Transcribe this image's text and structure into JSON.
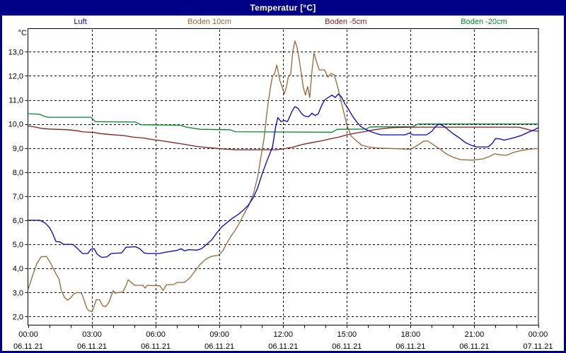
{
  "window": {
    "title": "Temperatur [°C]"
  },
  "colors": {
    "frame": "#000087",
    "titlebar_bg": "#000087",
    "titlebar_text": "#ffffff",
    "axis_text": "#000000",
    "grid": "#000000",
    "plot_border": "#000000",
    "background": "#ffffff"
  },
  "legend": [
    {
      "label": "Luft",
      "color": "#0000cc"
    },
    {
      "label": "Boden 10cm",
      "color": "#996633"
    },
    {
      "label": "Boden -5cm",
      "color": "#8b1a1a"
    },
    {
      "label": "Boden -20cm",
      "color": "#008a28"
    }
  ],
  "chart_data": {
    "type": "line",
    "title": "Temperatur [°C]",
    "ylabel": "°C",
    "unit_label": "°C",
    "grid": true,
    "legend_position": "top",
    "x_axis": {
      "unit": "hours",
      "min": 0,
      "max": 24,
      "minor_tick_every_hours": 1,
      "major_ticks": [
        {
          "hour": 0,
          "time": "00:00",
          "date": "06.11.21"
        },
        {
          "hour": 3,
          "time": "03:00",
          "date": "06.11.21"
        },
        {
          "hour": 6,
          "time": "06:00",
          "date": "06.11.21"
        },
        {
          "hour": 9,
          "time": "09:00",
          "date": "06.11.21"
        },
        {
          "hour": 12,
          "time": "12:00",
          "date": "06.11.21"
        },
        {
          "hour": 15,
          "time": "15:00",
          "date": "06.11.21"
        },
        {
          "hour": 18,
          "time": "18:00",
          "date": "06.11.21"
        },
        {
          "hour": 21,
          "time": "21:00",
          "date": "06.11.21"
        },
        {
          "hour": 24,
          "time": "00:00",
          "date": "07.11.21"
        }
      ]
    },
    "y_axis": {
      "min_visible": 1.66,
      "max_visible": 13.95,
      "tick_step": 1.0,
      "tick_values": [
        2,
        3,
        4,
        5,
        6,
        7,
        8,
        9,
        10,
        11,
        12,
        13
      ],
      "tick_labels": [
        "2,0",
        "3,0",
        "4,0",
        "5,0",
        "6,0",
        "7,0",
        "8,0",
        "9,0",
        "10,0",
        "11,0",
        "12,0",
        "13,0"
      ]
    },
    "series": [
      {
        "name": "Boden -20cm",
        "color": "#008a28",
        "points": [
          [
            0,
            10.43
          ],
          [
            0.55,
            10.4
          ],
          [
            0.75,
            10.32
          ],
          [
            0.95,
            10.28
          ],
          [
            2.95,
            10.28
          ],
          [
            3.15,
            10.1
          ],
          [
            5.05,
            10.08
          ],
          [
            5.3,
            9.97
          ],
          [
            7.15,
            9.95
          ],
          [
            7.45,
            9.87
          ],
          [
            8.1,
            9.78
          ],
          [
            9.5,
            9.76
          ],
          [
            9.75,
            9.68
          ],
          [
            14.3,
            9.66
          ],
          [
            14.55,
            9.78
          ],
          [
            15.9,
            9.79
          ],
          [
            16.1,
            9.88
          ],
          [
            18.1,
            9.89
          ],
          [
            18.35,
            10.0
          ],
          [
            24,
            10.0
          ]
        ]
      },
      {
        "name": "Boden -5cm",
        "color": "#8b1a1a",
        "points": [
          [
            0,
            9.92
          ],
          [
            0.35,
            9.87
          ],
          [
            0.6,
            9.82
          ],
          [
            1.0,
            9.79
          ],
          [
            1.9,
            9.76
          ],
          [
            2.3,
            9.72
          ],
          [
            2.6,
            9.67
          ],
          [
            3.1,
            9.65
          ],
          [
            3.4,
            9.6
          ],
          [
            3.9,
            9.56
          ],
          [
            4.5,
            9.52
          ],
          [
            4.9,
            9.46
          ],
          [
            5.4,
            9.42
          ],
          [
            5.8,
            9.36
          ],
          [
            6.3,
            9.3
          ],
          [
            6.9,
            9.22
          ],
          [
            7.4,
            9.15
          ],
          [
            7.9,
            9.07
          ],
          [
            8.5,
            9.02
          ],
          [
            9.1,
            8.97
          ],
          [
            9.8,
            8.93
          ],
          [
            11.7,
            8.93
          ],
          [
            12.1,
            8.98
          ],
          [
            12.5,
            9.05
          ],
          [
            12.9,
            9.15
          ],
          [
            13.3,
            9.22
          ],
          [
            13.8,
            9.3
          ],
          [
            14.2,
            9.38
          ],
          [
            14.6,
            9.45
          ],
          [
            15.0,
            9.55
          ],
          [
            15.4,
            9.62
          ],
          [
            15.8,
            9.68
          ],
          [
            16.2,
            9.75
          ],
          [
            16.6,
            9.8
          ],
          [
            17.1,
            9.85
          ],
          [
            18.0,
            9.87
          ],
          [
            23.1,
            9.87
          ],
          [
            23.4,
            9.8
          ],
          [
            23.7,
            9.73
          ],
          [
            24,
            9.7
          ]
        ]
      },
      {
        "name": "Boden 10cm",
        "color": "#996633",
        "points": [
          [
            0,
            3.15
          ],
          [
            0.2,
            3.7
          ],
          [
            0.4,
            4.2
          ],
          [
            0.6,
            4.48
          ],
          [
            0.85,
            4.5
          ],
          [
            1.0,
            4.3
          ],
          [
            1.15,
            4.05
          ],
          [
            1.3,
            3.78
          ],
          [
            1.45,
            3.55
          ],
          [
            1.55,
            3.1
          ],
          [
            1.7,
            2.8
          ],
          [
            1.85,
            2.68
          ],
          [
            2.0,
            2.78
          ],
          [
            2.15,
            2.95
          ],
          [
            2.3,
            3.0
          ],
          [
            2.5,
            2.98
          ],
          [
            2.6,
            2.75
          ],
          [
            2.75,
            2.35
          ],
          [
            2.85,
            2.25
          ],
          [
            3.0,
            2.2
          ],
          [
            3.1,
            2.45
          ],
          [
            3.2,
            2.7
          ],
          [
            3.35,
            2.7
          ],
          [
            3.5,
            2.45
          ],
          [
            3.65,
            2.42
          ],
          [
            3.8,
            2.6
          ],
          [
            3.9,
            2.85
          ],
          [
            4.0,
            3.08
          ],
          [
            4.1,
            2.97
          ],
          [
            4.25,
            3.0
          ],
          [
            4.45,
            3.02
          ],
          [
            4.6,
            3.28
          ],
          [
            4.7,
            3.53
          ],
          [
            4.85,
            3.42
          ],
          [
            5.0,
            3.3
          ],
          [
            5.4,
            3.3
          ],
          [
            5.5,
            3.18
          ],
          [
            5.6,
            3.3
          ],
          [
            6.2,
            3.28
          ],
          [
            6.35,
            3.08
          ],
          [
            6.5,
            3.32
          ],
          [
            6.85,
            3.33
          ],
          [
            7.0,
            3.42
          ],
          [
            7.35,
            3.42
          ],
          [
            7.6,
            3.6
          ],
          [
            7.85,
            3.9
          ],
          [
            8.1,
            4.18
          ],
          [
            8.35,
            4.38
          ],
          [
            8.6,
            4.5
          ],
          [
            8.95,
            4.55
          ],
          [
            9.15,
            4.72
          ],
          [
            9.35,
            5.05
          ],
          [
            9.55,
            5.35
          ],
          [
            9.75,
            5.6
          ],
          [
            9.95,
            5.9
          ],
          [
            10.15,
            6.25
          ],
          [
            10.4,
            6.65
          ],
          [
            10.6,
            7.1
          ],
          [
            10.8,
            7.8
          ],
          [
            10.95,
            8.6
          ],
          [
            11.1,
            9.4
          ],
          [
            11.25,
            10.6
          ],
          [
            11.4,
            11.5
          ],
          [
            11.5,
            12.0
          ],
          [
            11.6,
            12.1
          ],
          [
            11.7,
            12.45
          ],
          [
            11.85,
            11.8
          ],
          [
            11.95,
            11.55
          ],
          [
            12.05,
            11.25
          ],
          [
            12.15,
            11.55
          ],
          [
            12.25,
            12.0
          ],
          [
            12.35,
            12.05
          ],
          [
            12.45,
            13.0
          ],
          [
            12.55,
            13.45
          ],
          [
            12.65,
            13.2
          ],
          [
            12.75,
            12.7
          ],
          [
            12.85,
            12.1
          ],
          [
            12.95,
            11.5
          ],
          [
            13.05,
            11.2
          ],
          [
            13.15,
            11.55
          ],
          [
            13.25,
            11.1
          ],
          [
            13.35,
            12.15
          ],
          [
            13.45,
            12.95
          ],
          [
            13.6,
            12.5
          ],
          [
            13.7,
            12.25
          ],
          [
            13.95,
            12.25
          ],
          [
            14.1,
            11.95
          ],
          [
            14.25,
            12.1
          ],
          [
            14.4,
            12.05
          ],
          [
            14.55,
            11.6
          ],
          [
            14.7,
            11.05
          ],
          [
            14.85,
            10.5
          ],
          [
            15.0,
            9.95
          ],
          [
            15.2,
            9.5
          ],
          [
            15.45,
            9.3
          ],
          [
            15.7,
            9.12
          ],
          [
            16.0,
            9.05
          ],
          [
            16.5,
            9.0
          ],
          [
            17.5,
            8.97
          ],
          [
            18.0,
            8.95
          ],
          [
            18.3,
            9.1
          ],
          [
            18.6,
            9.28
          ],
          [
            18.8,
            9.3
          ],
          [
            19.1,
            9.12
          ],
          [
            19.4,
            8.95
          ],
          [
            19.7,
            8.75
          ],
          [
            20.0,
            8.62
          ],
          [
            20.35,
            8.52
          ],
          [
            20.9,
            8.5
          ],
          [
            21.4,
            8.55
          ],
          [
            21.7,
            8.65
          ],
          [
            21.95,
            8.76
          ],
          [
            22.2,
            8.72
          ],
          [
            22.5,
            8.7
          ],
          [
            22.85,
            8.82
          ],
          [
            23.2,
            8.9
          ],
          [
            23.55,
            8.95
          ],
          [
            24,
            8.98
          ]
        ]
      },
      {
        "name": "Luft",
        "color": "#0000cc",
        "points": [
          [
            0,
            6.0
          ],
          [
            0.55,
            6.0
          ],
          [
            0.8,
            5.88
          ],
          [
            1.0,
            5.7
          ],
          [
            1.15,
            5.45
          ],
          [
            1.3,
            5.12
          ],
          [
            1.5,
            5.1
          ],
          [
            1.65,
            5.0
          ],
          [
            2.1,
            5.0
          ],
          [
            2.35,
            4.8
          ],
          [
            2.55,
            4.62
          ],
          [
            2.8,
            4.62
          ],
          [
            2.95,
            4.8
          ],
          [
            3.1,
            4.82
          ],
          [
            3.25,
            4.58
          ],
          [
            3.45,
            4.46
          ],
          [
            3.7,
            4.48
          ],
          [
            3.9,
            4.62
          ],
          [
            4.4,
            4.65
          ],
          [
            4.6,
            4.88
          ],
          [
            5.05,
            4.9
          ],
          [
            5.25,
            4.82
          ],
          [
            5.45,
            4.65
          ],
          [
            5.6,
            4.62
          ],
          [
            6.15,
            4.62
          ],
          [
            6.5,
            4.68
          ],
          [
            7.0,
            4.75
          ],
          [
            7.2,
            4.82
          ],
          [
            7.35,
            4.73
          ],
          [
            7.55,
            4.78
          ],
          [
            7.95,
            4.76
          ],
          [
            8.15,
            4.82
          ],
          [
            8.4,
            5.0
          ],
          [
            8.65,
            5.2
          ],
          [
            8.85,
            5.45
          ],
          [
            9.1,
            5.72
          ],
          [
            9.35,
            5.9
          ],
          [
            9.6,
            6.08
          ],
          [
            9.85,
            6.22
          ],
          [
            10.1,
            6.4
          ],
          [
            10.35,
            6.62
          ],
          [
            10.6,
            6.95
          ],
          [
            10.8,
            7.35
          ],
          [
            11.0,
            7.9
          ],
          [
            11.25,
            8.5
          ],
          [
            11.5,
            9.05
          ],
          [
            11.65,
            9.9
          ],
          [
            11.75,
            10.27
          ],
          [
            11.9,
            10.1
          ],
          [
            12.05,
            10.15
          ],
          [
            12.2,
            10.1
          ],
          [
            12.4,
            10.5
          ],
          [
            12.55,
            10.72
          ],
          [
            12.7,
            10.65
          ],
          [
            12.85,
            10.45
          ],
          [
            13.0,
            10.33
          ],
          [
            13.2,
            10.3
          ],
          [
            13.35,
            10.45
          ],
          [
            13.5,
            10.35
          ],
          [
            13.65,
            10.42
          ],
          [
            13.8,
            10.75
          ],
          [
            13.95,
            11.0
          ],
          [
            14.15,
            11.12
          ],
          [
            14.3,
            11.2
          ],
          [
            14.45,
            11.1
          ],
          [
            14.6,
            11.25
          ],
          [
            14.75,
            11.12
          ],
          [
            14.9,
            10.85
          ],
          [
            15.05,
            10.65
          ],
          [
            15.25,
            10.35
          ],
          [
            15.45,
            10.1
          ],
          [
            15.65,
            9.9
          ],
          [
            15.9,
            9.77
          ],
          [
            16.15,
            9.68
          ],
          [
            16.4,
            9.6
          ],
          [
            16.6,
            9.55
          ],
          [
            17.75,
            9.55
          ],
          [
            17.95,
            9.63
          ],
          [
            18.1,
            9.55
          ],
          [
            18.75,
            9.55
          ],
          [
            19.0,
            9.7
          ],
          [
            19.2,
            9.92
          ],
          [
            19.35,
            10.0
          ],
          [
            19.55,
            9.92
          ],
          [
            19.75,
            9.78
          ],
          [
            20.0,
            9.6
          ],
          [
            20.3,
            9.42
          ],
          [
            20.6,
            9.22
          ],
          [
            20.9,
            9.1
          ],
          [
            21.1,
            9.05
          ],
          [
            21.65,
            9.05
          ],
          [
            21.85,
            9.2
          ],
          [
            22.0,
            9.4
          ],
          [
            22.2,
            9.38
          ],
          [
            22.4,
            9.33
          ],
          [
            22.65,
            9.38
          ],
          [
            22.9,
            9.44
          ],
          [
            23.2,
            9.52
          ],
          [
            23.5,
            9.64
          ],
          [
            23.8,
            9.75
          ],
          [
            24,
            9.84
          ]
        ]
      }
    ]
  }
}
